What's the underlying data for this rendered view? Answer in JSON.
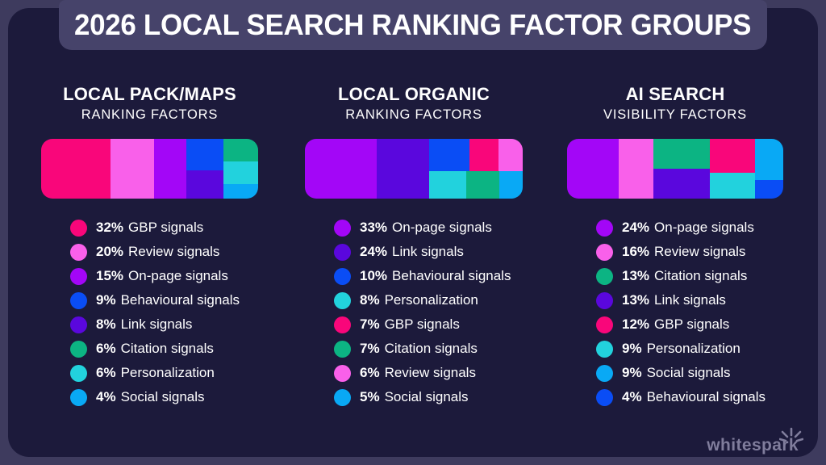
{
  "page": {
    "title": "2026 LOCAL SEARCH RANKING FACTOR GROUPS",
    "background_color": "#3E3B5E",
    "card_color": "#1C1A3B",
    "banner_color": "#46436A"
  },
  "palette": {
    "gbp": "#F9067A",
    "review": "#F960EA",
    "onpage": "#A306F7",
    "behavioural": "#0A4DF5",
    "link": "#5A07DD",
    "citation": "#0CB483",
    "personalization": "#22D2DD",
    "social": "#09A9F5"
  },
  "chart_data": [
    {
      "type": "treemap",
      "unit": "%",
      "title": "LOCAL PACK/MAPS",
      "subtitle": "RANKING FACTORS",
      "items": [
        {
          "key": "gbp",
          "label": "GBP signals",
          "value": 32,
          "percent": "32%"
        },
        {
          "key": "review",
          "label": "Review signals",
          "value": 20,
          "percent": "20%"
        },
        {
          "key": "onpage",
          "label": "On-page signals",
          "value": 15,
          "percent": "15%"
        },
        {
          "key": "behavioural",
          "label": "Behavioural signals",
          "value": 9,
          "percent": "9%"
        },
        {
          "key": "link",
          "label": "Link signals",
          "value": 8,
          "percent": "8%"
        },
        {
          "key": "citation",
          "label": "Citation signals",
          "value": 6,
          "percent": "6%"
        },
        {
          "key": "personalization",
          "label": "Personalization",
          "value": 6,
          "percent": "6%"
        },
        {
          "key": "social",
          "label": "Social signals",
          "value": 4,
          "percent": "4%"
        }
      ],
      "treemap_layout": {
        "dir": "row",
        "cells": [
          {
            "key": "gbp",
            "flex": 32
          },
          {
            "key": "review",
            "flex": 20
          },
          {
            "key": "onpage",
            "flex": 15
          },
          {
            "dir": "column",
            "flex": 17,
            "cells": [
              {
                "key": "behavioural",
                "flex": 9
              },
              {
                "key": "link",
                "flex": 8
              }
            ]
          },
          {
            "dir": "column",
            "flex": 16,
            "cells": [
              {
                "key": "citation",
                "flex": 6
              },
              {
                "key": "personalization",
                "flex": 6
              },
              {
                "key": "social",
                "flex": 4
              }
            ]
          }
        ]
      }
    },
    {
      "type": "treemap",
      "unit": "%",
      "title": "LOCAL ORGANIC",
      "subtitle": "RANKING FACTORS",
      "items": [
        {
          "key": "onpage",
          "label": "On-page signals",
          "value": 33,
          "percent": "33%"
        },
        {
          "key": "link",
          "label": "Link signals",
          "value": 24,
          "percent": "24%"
        },
        {
          "key": "behavioural",
          "label": "Behavioural signals",
          "value": 10,
          "percent": "10%"
        },
        {
          "key": "personalization",
          "label": "Personalization",
          "value": 8,
          "percent": "8%"
        },
        {
          "key": "gbp",
          "label": "GBP signals",
          "value": 7,
          "percent": "7%"
        },
        {
          "key": "citation",
          "label": "Citation signals",
          "value": 7,
          "percent": "7%"
        },
        {
          "key": "review",
          "label": "Review signals",
          "value": 6,
          "percent": "6%"
        },
        {
          "key": "social",
          "label": "Social signals",
          "value": 5,
          "percent": "5%"
        }
      ],
      "treemap_layout": {
        "dir": "row",
        "cells": [
          {
            "key": "onpage",
            "flex": 33
          },
          {
            "key": "link",
            "flex": 24
          },
          {
            "dir": "column",
            "flex": 43,
            "cells": [
              {
                "dir": "row",
                "flex": 23,
                "cells": [
                  {
                    "key": "behavioural",
                    "flex": 10
                  },
                  {
                    "key": "gbp",
                    "flex": 7
                  },
                  {
                    "key": "review",
                    "flex": 6
                  }
                ]
              },
              {
                "dir": "row",
                "flex": 20,
                "cells": [
                  {
                    "key": "personalization",
                    "flex": 8
                  },
                  {
                    "key": "citation",
                    "flex": 7
                  },
                  {
                    "key": "social",
                    "flex": 5
                  }
                ]
              }
            ]
          }
        ]
      }
    },
    {
      "type": "treemap",
      "unit": "%",
      "title": "AI SEARCH",
      "subtitle": "VISIBILITY FACTORS",
      "items": [
        {
          "key": "onpage",
          "label": "On-page signals",
          "value": 24,
          "percent": "24%"
        },
        {
          "key": "review",
          "label": "Review signals",
          "value": 16,
          "percent": "16%"
        },
        {
          "key": "citation",
          "label": "Citation signals",
          "value": 13,
          "percent": "13%"
        },
        {
          "key": "link",
          "label": "Link signals",
          "value": 13,
          "percent": "13%"
        },
        {
          "key": "gbp",
          "label": "GBP signals",
          "value": 12,
          "percent": "12%"
        },
        {
          "key": "personalization",
          "label": "Personalization",
          "value": 9,
          "percent": "9%"
        },
        {
          "key": "social",
          "label": "Social signals",
          "value": 9,
          "percent": "9%"
        },
        {
          "key": "behavioural",
          "label": "Behavioural signals",
          "value": 4,
          "percent": "4%"
        }
      ],
      "treemap_layout": {
        "dir": "row",
        "cells": [
          {
            "key": "onpage",
            "flex": 24
          },
          {
            "key": "review",
            "flex": 16
          },
          {
            "dir": "column",
            "flex": 26,
            "cells": [
              {
                "key": "citation",
                "flex": 13
              },
              {
                "key": "link",
                "flex": 13
              }
            ]
          },
          {
            "dir": "column",
            "flex": 21,
            "cells": [
              {
                "key": "gbp",
                "flex": 12
              },
              {
                "key": "personalization",
                "flex": 9
              }
            ]
          },
          {
            "dir": "column",
            "flex": 13,
            "cells": [
              {
                "key": "social",
                "flex": 9
              },
              {
                "key": "behavioural",
                "flex": 4
              }
            ]
          }
        ]
      }
    }
  ],
  "logo": {
    "text": "whitespark"
  }
}
